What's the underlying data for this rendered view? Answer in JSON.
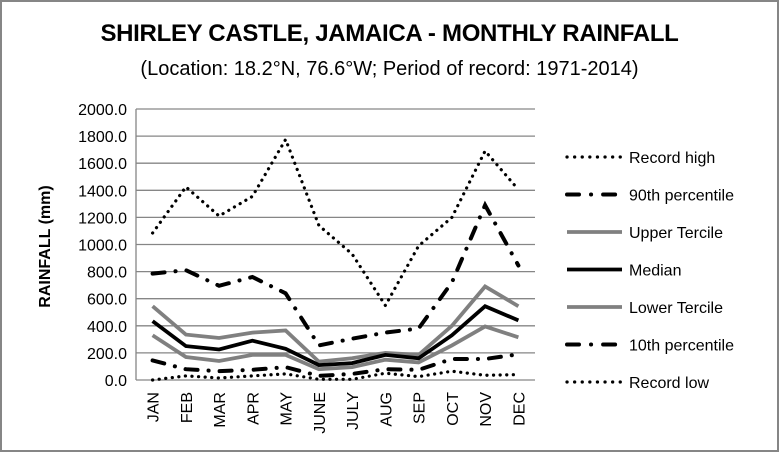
{
  "chart_data": {
    "type": "line",
    "title": "SHIRLEY CASTLE, JAMAICA - MONTHLY RAINFALL",
    "subtitle": "(Location: 18.2°N, 76.6°W; Period of record: 1971-2014)",
    "xlabel": "",
    "ylabel": "RAINFALL (mm)",
    "ylim": [
      0,
      2000
    ],
    "ytick_step": 200,
    "yticks": [
      "0.0",
      "200.0",
      "400.0",
      "600.0",
      "800.0",
      "1000.0",
      "1200.0",
      "1400.0",
      "1600.0",
      "1800.0",
      "2000.0"
    ],
    "grid": true,
    "legend_position": "right",
    "categories": [
      "JAN",
      "FEB",
      "MAR",
      "APR",
      "MAY",
      "JUNE",
      "JULY",
      "AUG",
      "SEP",
      "OCT",
      "NOV",
      "DEC"
    ],
    "series": [
      {
        "name": "Record high",
        "style": "dotted",
        "color": "#000000",
        "values": [
          1085,
          1425,
          1210,
          1355,
          1775,
          1140,
          930,
          550,
          990,
          1200,
          1690,
          1405
        ]
      },
      {
        "name": "90th percentile",
        "style": "dash-dot",
        "color": "#000000",
        "values": [
          785,
          810,
          695,
          760,
          640,
          255,
          305,
          350,
          380,
          720,
          1290,
          845
        ]
      },
      {
        "name": "Upper Tercile",
        "style": "solid",
        "color": "#808080",
        "values": [
          545,
          335,
          310,
          350,
          365,
          135,
          160,
          200,
          185,
          400,
          690,
          545
        ]
      },
      {
        "name": "Median",
        "style": "solid",
        "color": "#000000",
        "values": [
          435,
          250,
          225,
          290,
          230,
          110,
          125,
          185,
          160,
          330,
          545,
          440
        ]
      },
      {
        "name": "Lower Tercile",
        "style": "solid",
        "color": "#808080",
        "values": [
          330,
          170,
          140,
          185,
          185,
          80,
          95,
          150,
          130,
          255,
          395,
          315
        ]
      },
      {
        "name": "10th percentile",
        "style": "dash-dot",
        "color": "#000000",
        "values": [
          145,
          80,
          65,
          75,
          95,
          30,
          45,
          80,
          75,
          155,
          155,
          190
        ]
      },
      {
        "name": "Record low",
        "style": "dotted",
        "color": "#000000",
        "values": [
          0,
          30,
          15,
          30,
          45,
          5,
          5,
          50,
          25,
          65,
          35,
          40
        ]
      }
    ]
  }
}
